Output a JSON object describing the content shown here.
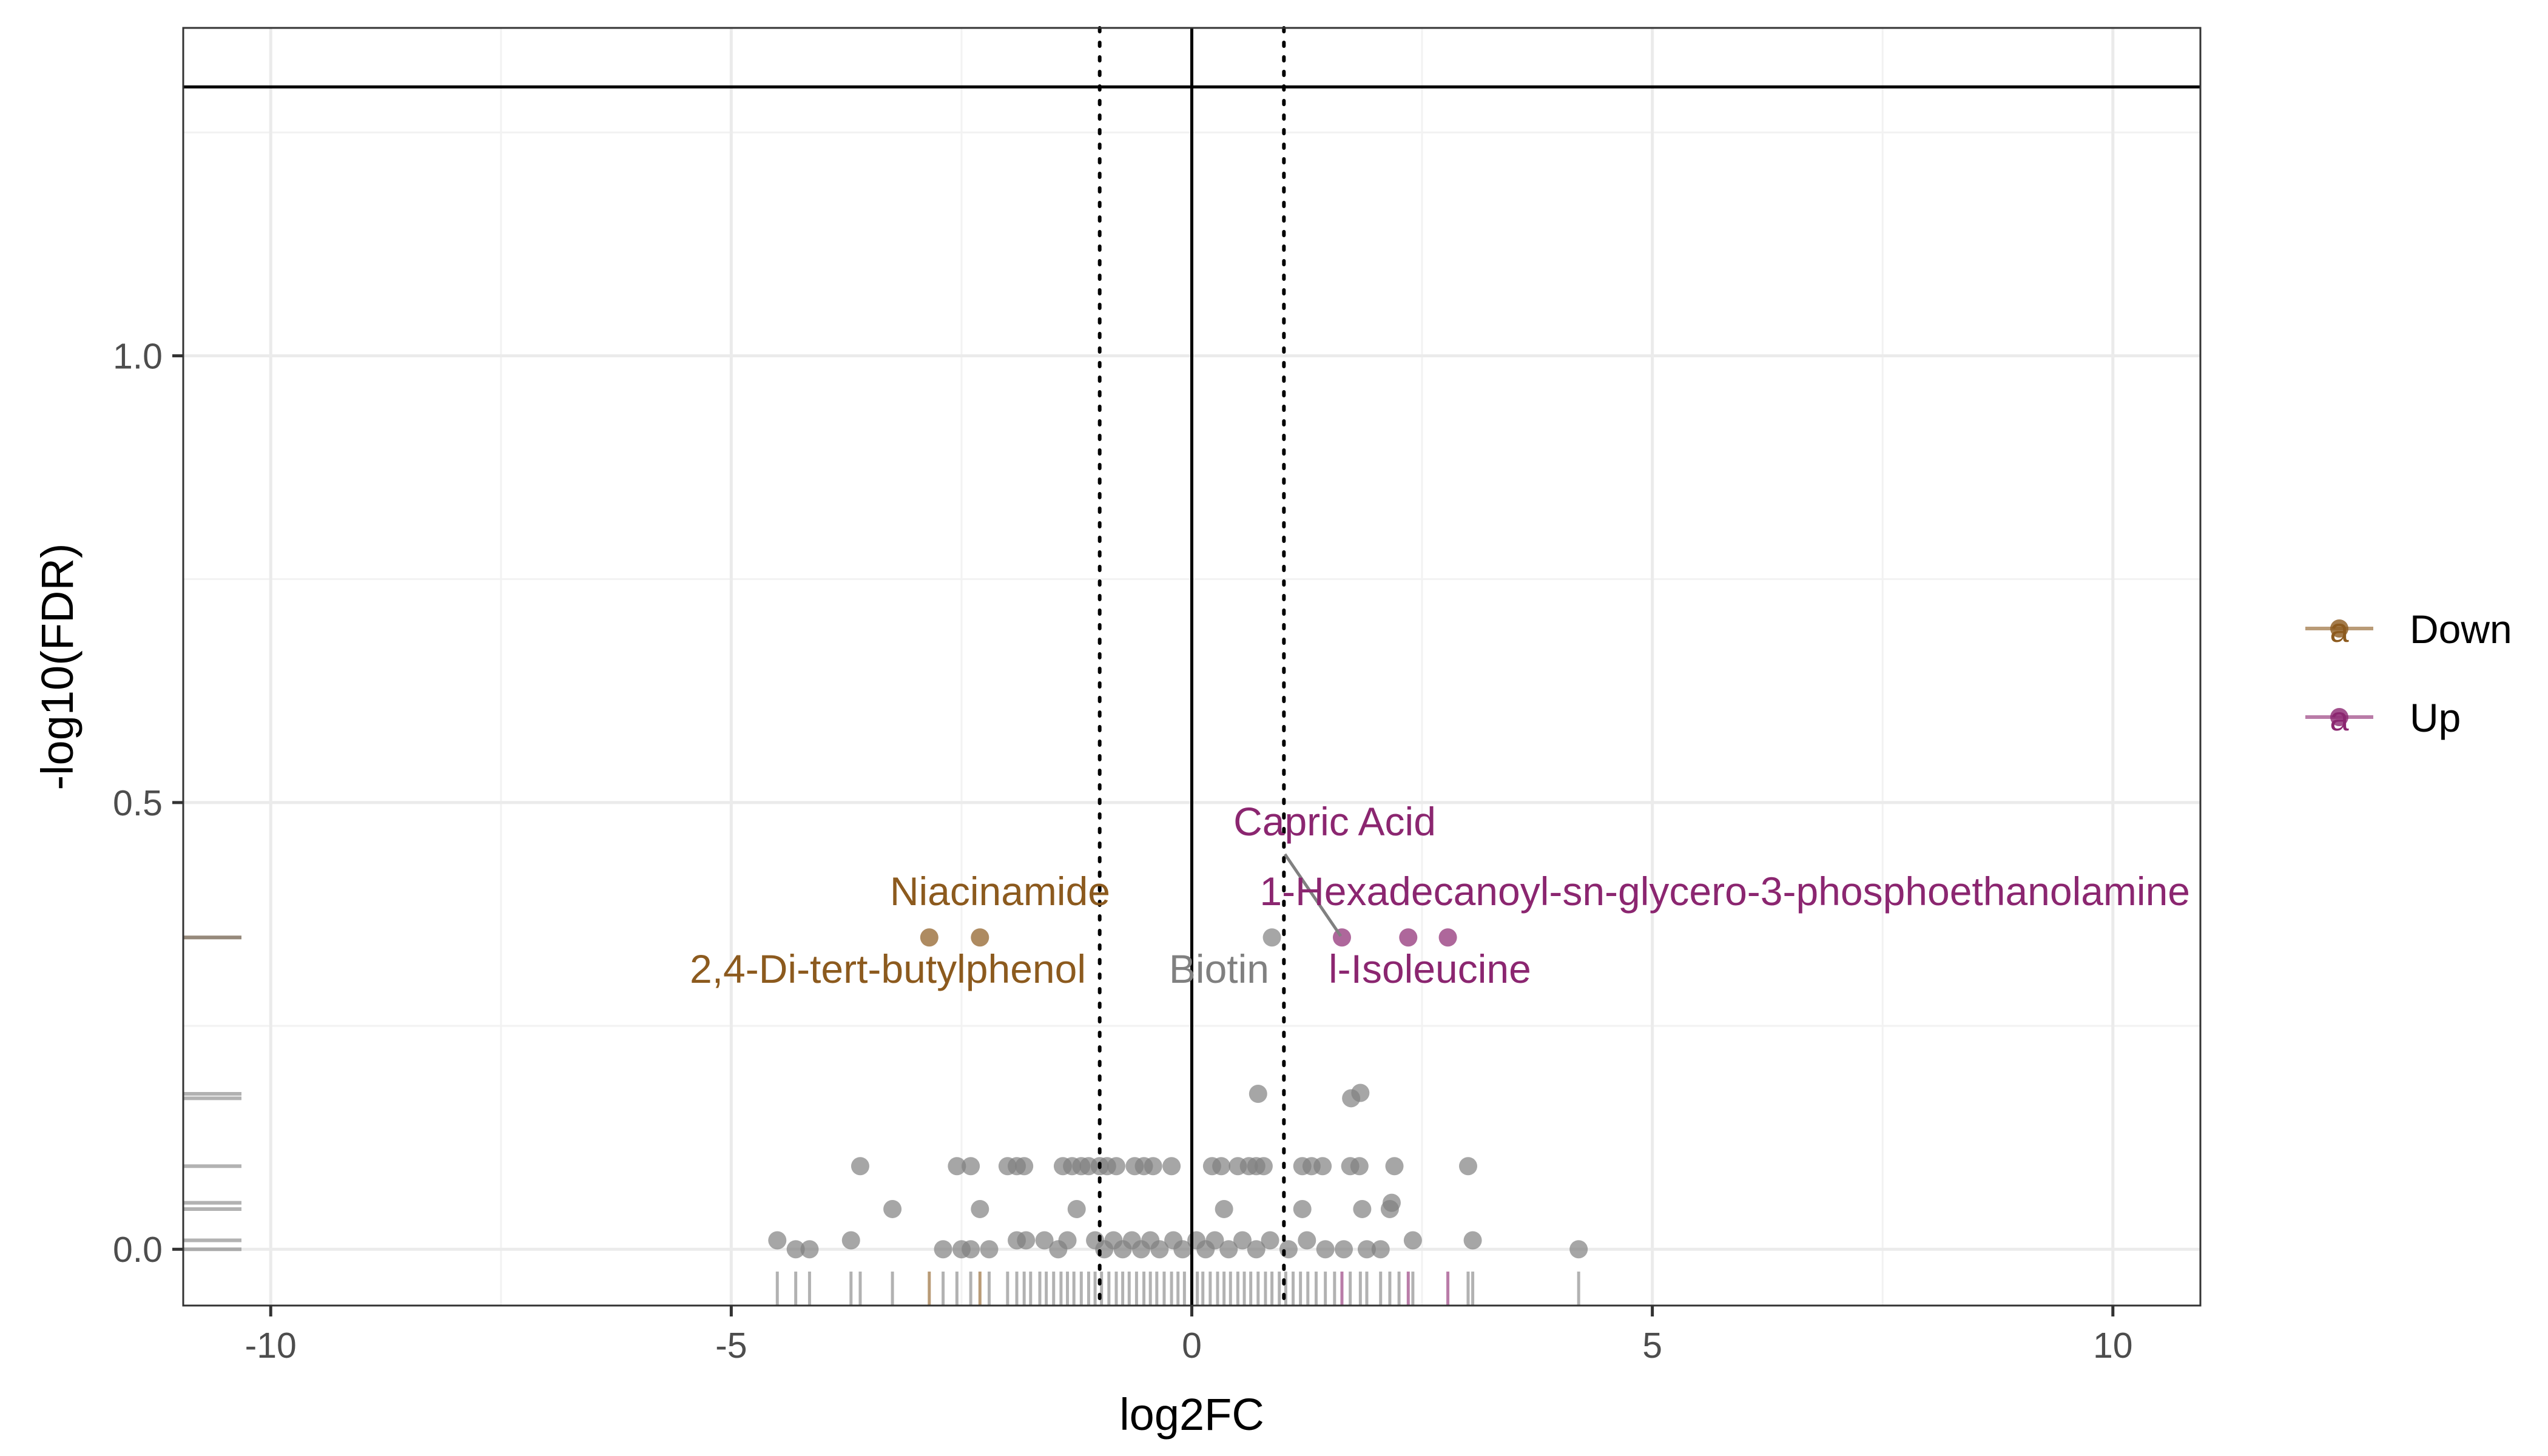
{
  "chart_data": {
    "type": "scatter",
    "title": "",
    "xlabel": "log2FC",
    "ylabel": "-log10(FDR)",
    "xlim": [
      -10.95,
      10.95
    ],
    "ylim": [
      -0.063,
      1.367
    ],
    "xticks": [
      -10,
      -5,
      0,
      5,
      10
    ],
    "xtick_labels": [
      "-10",
      "-5",
      "0",
      "5",
      "10"
    ],
    "yticks": [
      0.0,
      0.5,
      1.0
    ],
    "ytick_labels": [
      "0.0",
      "0.5",
      "1.0"
    ],
    "grid": true,
    "reference_lines": {
      "horizontal_solid_y": 1.301,
      "vertical_solid_x": 0,
      "vertical_dotted_x": [
        -1,
        1
      ]
    },
    "legend": {
      "position": "right",
      "glyph_letter": "a",
      "entries": [
        {
          "label": "Down",
          "color": "#8C5A1E"
        },
        {
          "label": "Up",
          "color": "#8B2670"
        }
      ]
    },
    "colors": {
      "Down": "#8C5A1E",
      "Up": "#8B2670",
      "NS": "#808080"
    },
    "series": [
      {
        "name": "Down",
        "color": "#8C5A1E",
        "points": [
          {
            "x": -2.85,
            "y": 0.349
          },
          {
            "x": -2.3,
            "y": 0.349
          }
        ]
      },
      {
        "name": "Up",
        "color": "#8B2670",
        "points": [
          {
            "x": 1.63,
            "y": 0.349
          },
          {
            "x": 2.35,
            "y": 0.349
          },
          {
            "x": 2.78,
            "y": 0.349
          }
        ]
      },
      {
        "name": "",
        "color": "#808080",
        "points": [
          {
            "x": 0.87,
            "y": 0.349
          },
          {
            "x": 0.72,
            "y": 0.174
          },
          {
            "x": 1.73,
            "y": 0.169
          },
          {
            "x": 1.83,
            "y": 0.175
          },
          {
            "x": -3.6,
            "y": 0.093
          },
          {
            "x": -2.55,
            "y": 0.093
          },
          {
            "x": -2.4,
            "y": 0.093
          },
          {
            "x": -2.0,
            "y": 0.093
          },
          {
            "x": -1.9,
            "y": 0.093
          },
          {
            "x": -1.82,
            "y": 0.093
          },
          {
            "x": -1.4,
            "y": 0.093
          },
          {
            "x": -1.3,
            "y": 0.093
          },
          {
            "x": -1.2,
            "y": 0.093
          },
          {
            "x": -1.12,
            "y": 0.093
          },
          {
            "x": -1.0,
            "y": 0.093
          },
          {
            "x": -0.92,
            "y": 0.093
          },
          {
            "x": -0.82,
            "y": 0.093
          },
          {
            "x": -0.62,
            "y": 0.093
          },
          {
            "x": -0.52,
            "y": 0.093
          },
          {
            "x": -0.42,
            "y": 0.093
          },
          {
            "x": -0.22,
            "y": 0.093
          },
          {
            "x": 0.22,
            "y": 0.093
          },
          {
            "x": 0.32,
            "y": 0.093
          },
          {
            "x": 0.5,
            "y": 0.093
          },
          {
            "x": 0.62,
            "y": 0.093
          },
          {
            "x": 0.7,
            "y": 0.093
          },
          {
            "x": 0.78,
            "y": 0.093
          },
          {
            "x": 1.2,
            "y": 0.093
          },
          {
            "x": 1.3,
            "y": 0.093
          },
          {
            "x": 1.42,
            "y": 0.093
          },
          {
            "x": 1.72,
            "y": 0.093
          },
          {
            "x": 1.82,
            "y": 0.093
          },
          {
            "x": 2.2,
            "y": 0.093
          },
          {
            "x": 3.0,
            "y": 0.093
          },
          {
            "x": -3.25,
            "y": 0.045
          },
          {
            "x": -2.3,
            "y": 0.045
          },
          {
            "x": -1.25,
            "y": 0.045
          },
          {
            "x": 0.35,
            "y": 0.045
          },
          {
            "x": 1.2,
            "y": 0.045
          },
          {
            "x": 1.85,
            "y": 0.045
          },
          {
            "x": 2.15,
            "y": 0.045
          },
          {
            "x": 2.17,
            "y": 0.052
          },
          {
            "x": -4.5,
            "y": 0.01
          },
          {
            "x": -4.3,
            "y": 0.0
          },
          {
            "x": -4.15,
            "y": 0.0
          },
          {
            "x": -3.7,
            "y": 0.01
          },
          {
            "x": -2.7,
            "y": 0.0
          },
          {
            "x": -2.5,
            "y": 0.0
          },
          {
            "x": -2.4,
            "y": 0.0
          },
          {
            "x": -2.2,
            "y": 0.0
          },
          {
            "x": -1.9,
            "y": 0.01
          },
          {
            "x": -1.8,
            "y": 0.01
          },
          {
            "x": -1.6,
            "y": 0.01
          },
          {
            "x": -1.45,
            "y": 0.0
          },
          {
            "x": -1.35,
            "y": 0.01
          },
          {
            "x": -1.05,
            "y": 0.01
          },
          {
            "x": -0.95,
            "y": 0.0
          },
          {
            "x": -0.85,
            "y": 0.01
          },
          {
            "x": -0.75,
            "y": 0.0
          },
          {
            "x": -0.65,
            "y": 0.01
          },
          {
            "x": -0.55,
            "y": 0.0
          },
          {
            "x": -0.45,
            "y": 0.01
          },
          {
            "x": -0.35,
            "y": 0.0
          },
          {
            "x": -0.2,
            "y": 0.01
          },
          {
            "x": -0.1,
            "y": 0.0
          },
          {
            "x": 0.05,
            "y": 0.01
          },
          {
            "x": 0.15,
            "y": 0.0
          },
          {
            "x": 0.25,
            "y": 0.01
          },
          {
            "x": 0.4,
            "y": 0.0
          },
          {
            "x": 0.55,
            "y": 0.01
          },
          {
            "x": 0.7,
            "y": 0.0
          },
          {
            "x": 0.85,
            "y": 0.01
          },
          {
            "x": 1.05,
            "y": 0.0
          },
          {
            "x": 1.25,
            "y": 0.01
          },
          {
            "x": 1.45,
            "y": 0.0
          },
          {
            "x": 1.65,
            "y": 0.0
          },
          {
            "x": 1.9,
            "y": 0.0
          },
          {
            "x": 2.05,
            "y": 0.0
          },
          {
            "x": 2.4,
            "y": 0.01
          },
          {
            "x": 3.05,
            "y": 0.01
          },
          {
            "x": 4.2,
            "y": 0.0
          }
        ]
      }
    ],
    "annotations": [
      {
        "text": "Niacinamide",
        "x": -2.3,
        "y": 0.349,
        "group": "Down"
      },
      {
        "text": "2,4-Di-tert-butylphenol",
        "x": -2.85,
        "y": 0.349,
        "group": "Down"
      },
      {
        "text": "Biotin",
        "x": 0.87,
        "y": 0.349,
        "group": "NS"
      },
      {
        "text": "Capric Acid",
        "x": 1.63,
        "y": 0.349,
        "group": "Up"
      },
      {
        "text": "1-Hexadecanoyl-sn-glycero-3-phosphoethanolamine",
        "x": 2.35,
        "y": 0.349,
        "group": "Up"
      },
      {
        "text": "l-Isoleucine",
        "x": 2.78,
        "y": 0.349,
        "group": "Up"
      }
    ],
    "rug_x": {
      "Down": [
        -2.85,
        -2.3
      ],
      "Up": [
        1.63,
        2.35,
        2.78
      ],
      "NS": [
        -4.5,
        -4.3,
        -4.15,
        -3.7,
        -3.6,
        -3.25,
        -2.7,
        -2.55,
        -2.4,
        -2.2,
        -2.0,
        -1.9,
        -1.82,
        -1.75,
        -1.65,
        -1.58,
        -1.5,
        -1.42,
        -1.35,
        -1.28,
        -1.2,
        -1.12,
        -1.05,
        -0.98,
        -0.9,
        -0.82,
        -0.75,
        -0.68,
        -0.6,
        -0.52,
        -0.45,
        -0.38,
        -0.3,
        -0.22,
        -0.15,
        -0.08,
        0.0,
        0.06,
        0.12,
        0.2,
        0.28,
        0.35,
        0.42,
        0.5,
        0.57,
        0.64,
        0.72,
        0.8,
        0.87,
        0.95,
        1.02,
        1.1,
        1.18,
        1.26,
        1.35,
        1.45,
        1.55,
        1.72,
        1.83,
        1.9,
        2.05,
        2.15,
        2.25,
        2.4,
        3.0,
        3.05,
        4.2
      ]
    },
    "rug_y": {
      "Down": [
        0.349
      ],
      "Up": [],
      "NS": [
        0.349,
        0.174,
        0.169,
        0.093,
        0.052,
        0.045,
        0.01,
        0.0
      ]
    }
  }
}
